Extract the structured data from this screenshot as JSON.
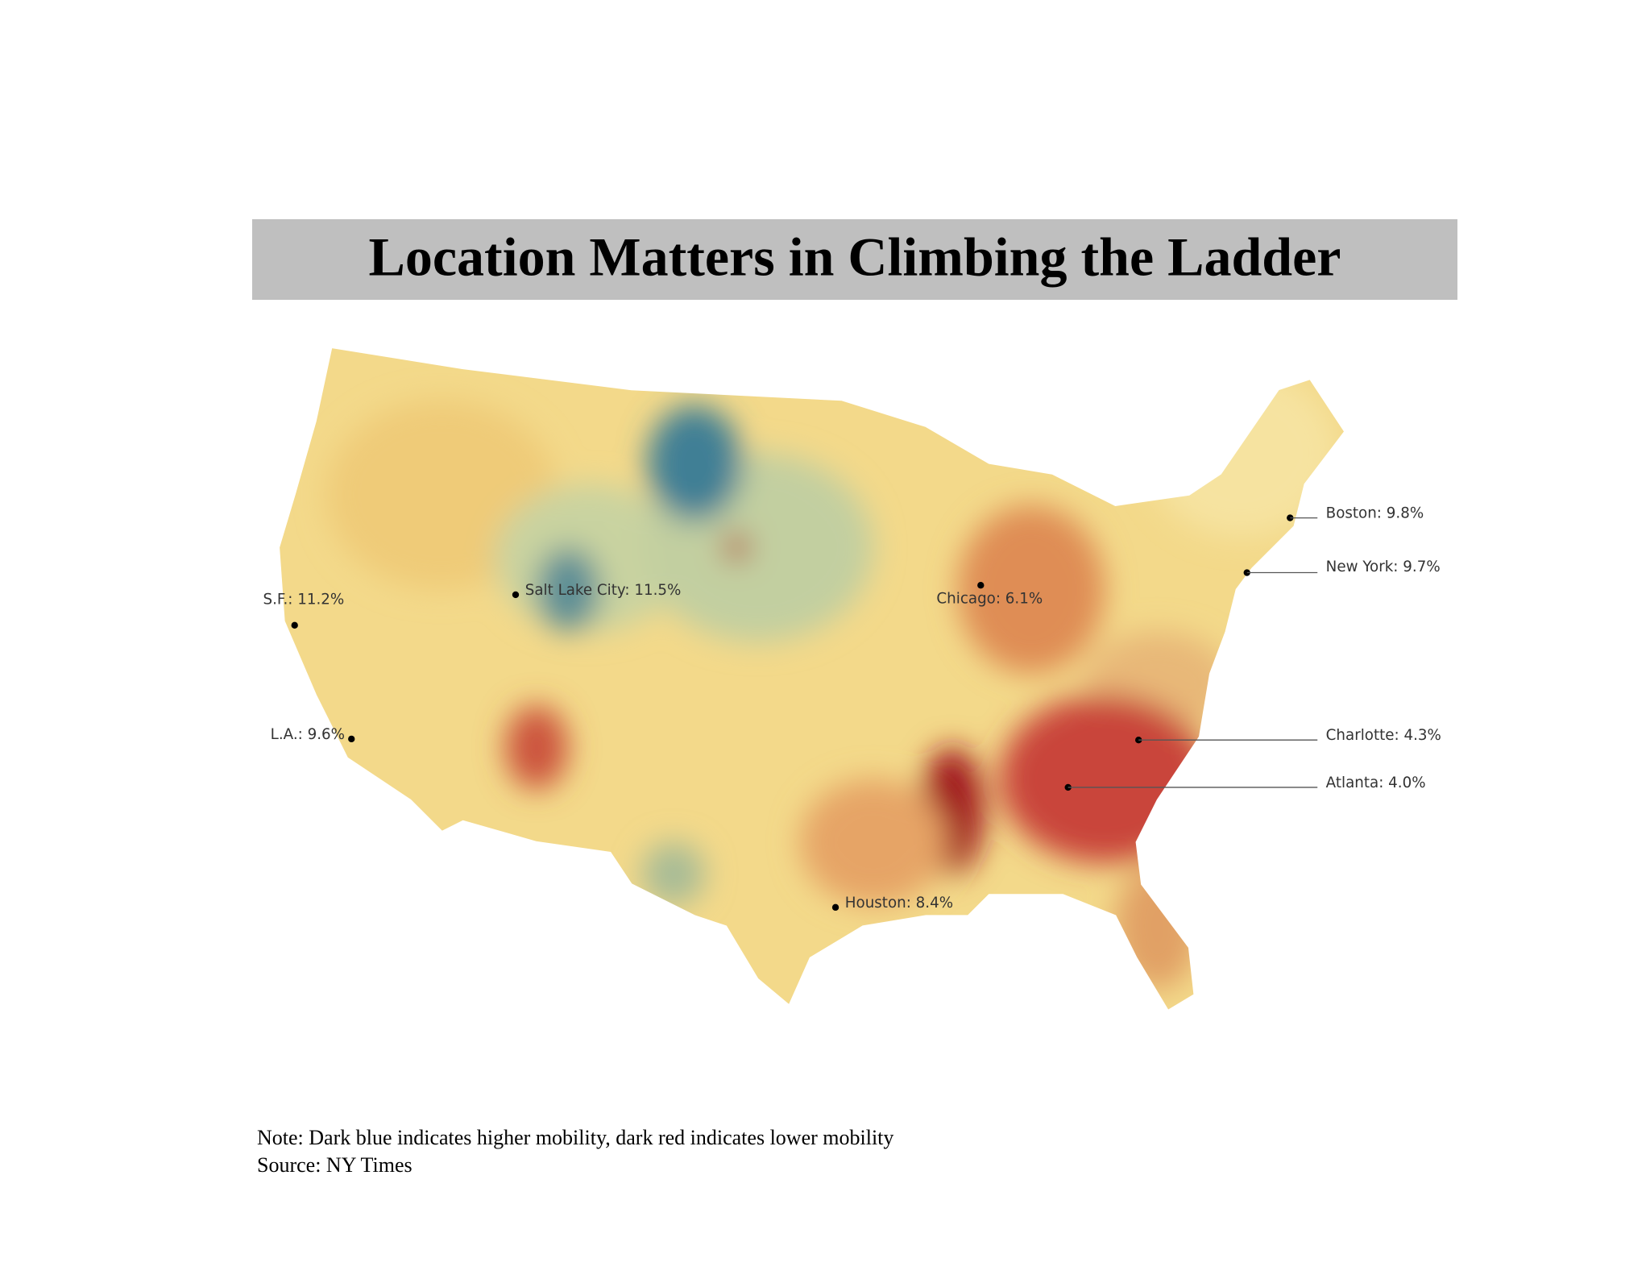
{
  "title": "Location Matters in Climbing the Ladder",
  "cities": [
    {
      "label": "S.F.: 11.2%"
    },
    {
      "label": "Salt Lake City: 11.5%"
    },
    {
      "label": "L.A.: 9.6%"
    },
    {
      "label": "Chicago: 6.1%"
    },
    {
      "label": "Houston: 8.4%"
    },
    {
      "label": "Boston: 9.8%"
    },
    {
      "label": "New York: 9.7%"
    },
    {
      "label": "Charlotte: 4.3%"
    },
    {
      "label": "Atlanta: 4.0%"
    }
  ],
  "note": "Note: Dark blue indicates higher mobility, dark red indicates lower mobility",
  "source": "Source: NY Times"
}
